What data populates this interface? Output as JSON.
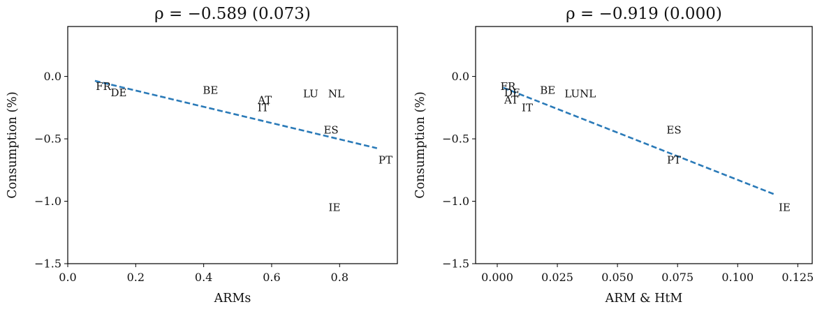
{
  "chart_data": [
    {
      "type": "scatter",
      "title": "ρ = −0.589 (0.073)",
      "xlabel": "ARMs",
      "ylabel": "Consumption (%)",
      "xlim": [
        0.0,
        0.97
      ],
      "ylim": [
        -1.5,
        0.4
      ],
      "xticks": [
        0.0,
        0.2,
        0.4,
        0.6,
        0.8
      ],
      "xtick_labels": [
        "0.0",
        "0.2",
        "0.4",
        "0.6",
        "0.8"
      ],
      "yticks": [
        -1.5,
        -1.0,
        -0.5,
        0.0
      ],
      "ytick_labels": [
        "−1.5",
        "−1.0",
        "−0.5",
        "0.0"
      ],
      "grid": false,
      "points": [
        {
          "label": "FR",
          "x": 0.105,
          "y": -0.08
        },
        {
          "label": "DE",
          "x": 0.15,
          "y": -0.13
        },
        {
          "label": "BE",
          "x": 0.42,
          "y": -0.11
        },
        {
          "label": "AT",
          "x": 0.58,
          "y": -0.19
        },
        {
          "label": "IT",
          "x": 0.575,
          "y": -0.25
        },
        {
          "label": "LU",
          "x": 0.715,
          "y": -0.14
        },
        {
          "label": "NL",
          "x": 0.79,
          "y": -0.14
        },
        {
          "label": "ES",
          "x": 0.775,
          "y": -0.43
        },
        {
          "label": "PT",
          "x": 0.935,
          "y": -0.67
        },
        {
          "label": "IE",
          "x": 0.785,
          "y": -1.05
        }
      ],
      "fit_line": {
        "x": [
          0.08,
          0.91
        ],
        "y": [
          -0.035,
          -0.575
        ],
        "color": "#2a7ab8",
        "style": "dashed"
      }
    },
    {
      "type": "scatter",
      "title": "ρ = −0.919 (0.000)",
      "xlabel": "ARM & HtM",
      "ylabel": "Consumption (%)",
      "xlim": [
        -0.009,
        0.131
      ],
      "ylim": [
        -1.5,
        0.4
      ],
      "xticks": [
        0.0,
        0.025,
        0.05,
        0.075,
        0.1,
        0.125
      ],
      "xtick_labels": [
        "0.000",
        "0.025",
        "0.050",
        "0.075",
        "0.100",
        "0.125"
      ],
      "yticks": [
        -1.5,
        -1.0,
        -0.5,
        0.0
      ],
      "ytick_labels": [
        "−1.5",
        "−1.0",
        "−0.5",
        "0.0"
      ],
      "grid": false,
      "points": [
        {
          "label": "FR",
          "x": 0.0045,
          "y": -0.08
        },
        {
          "label": "DE",
          "x": 0.0062,
          "y": -0.13
        },
        {
          "label": "AT",
          "x": 0.0058,
          "y": -0.19
        },
        {
          "label": "IT",
          "x": 0.0125,
          "y": -0.25
        },
        {
          "label": "BE",
          "x": 0.021,
          "y": -0.11
        },
        {
          "label": "LUNL",
          "x": 0.0345,
          "y": -0.14
        },
        {
          "label": "ES",
          "x": 0.0735,
          "y": -0.43
        },
        {
          "label": "PT",
          "x": 0.0735,
          "y": -0.67
        },
        {
          "label": "IE",
          "x": 0.1195,
          "y": -1.05
        }
      ],
      "fit_line": {
        "x": [
          0.0025,
          0.116
        ],
        "y": [
          -0.09,
          -0.95
        ],
        "color": "#2a7ab8",
        "style": "dashed"
      }
    }
  ]
}
